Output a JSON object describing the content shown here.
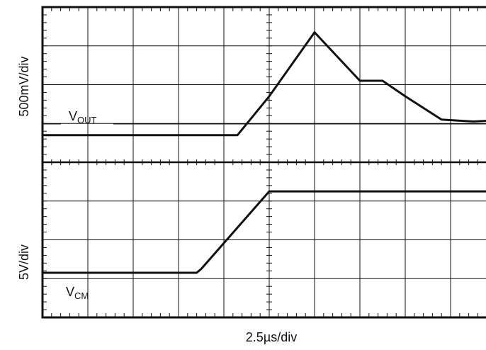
{
  "chart_data": {
    "type": "line",
    "xlabel": "2.5µs/div",
    "grid": true,
    "panels": [
      {
        "ylabel": "500mV/div",
        "series": [
          {
            "name_main": "V",
            "name_sub": "OUT",
            "x": [
              0,
              4.3,
              5.0,
              6.0,
              7.0,
              7.5,
              8.0,
              8.8,
              9.5,
              10
            ],
            "y": [
              -0.3,
              -0.3,
              0.7,
              2.35,
              1.1,
              1.1,
              0.7,
              0.1,
              0.05,
              0.08
            ]
          }
        ]
      },
      {
        "ylabel": "5V/div",
        "series": [
          {
            "name_main": "V",
            "name_sub": "CM",
            "x": [
              0,
              3.4,
              3.5,
              5.0,
              10
            ],
            "y": [
              0.15,
              0.15,
              0.25,
              2.25,
              2.25
            ]
          }
        ]
      }
    ]
  }
}
